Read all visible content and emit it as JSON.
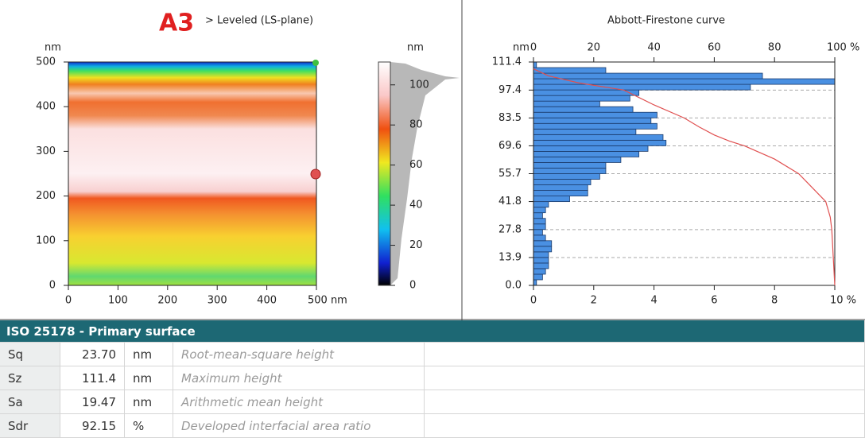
{
  "left_panel": {
    "label": "A3",
    "subtitle": "> Leveled (LS-plane)",
    "map": {
      "x_unit": "nm",
      "y_unit": "nm",
      "xlim": [
        0,
        500
      ],
      "xticks": [
        0,
        100,
        200,
        300,
        400,
        {
          "value": 500,
          "label": "500 nm"
        }
      ],
      "ylim": [
        0,
        500
      ],
      "yticks": [
        0,
        100,
        200,
        300,
        400,
        500
      ]
    },
    "colorbar": {
      "unit": "nm",
      "lim": [
        0,
        111.4
      ],
      "ticks": [
        0,
        20,
        40,
        60,
        80,
        100
      ]
    }
  },
  "chart_data": {
    "type": "histogram",
    "title": "Abbott-Firestone curve",
    "y_unit": "nm",
    "bins": [
      0,
      2.785,
      5.57,
      8.355,
      11.14,
      13.925,
      16.71,
      19.495,
      22.28,
      25.065,
      27.85,
      30.635,
      33.42,
      36.205,
      38.99,
      41.775,
      44.56,
      47.345,
      50.13,
      52.915,
      55.7,
      58.485,
      61.27,
      64.055,
      66.84,
      69.625,
      72.41,
      75.195,
      77.98,
      80.765,
      83.55,
      86.335,
      89.12,
      91.905,
      94.69,
      97.475,
      100.26,
      103.045,
      105.83,
      108.615,
      111.4
    ],
    "values": [
      0.1,
      0.3,
      0.4,
      0.5,
      0.5,
      0.5,
      0.6,
      0.6,
      0.4,
      0.3,
      0.4,
      0.4,
      0.3,
      0.4,
      0.5,
      1.2,
      1.8,
      1.8,
      1.9,
      2.2,
      2.4,
      2.4,
      2.9,
      3.5,
      3.8,
      4.4,
      4.3,
      3.4,
      4.1,
      3.9,
      4.1,
      3.3,
      2.2,
      3.2,
      3.5,
      7.2,
      10.0,
      7.6,
      2.4,
      0.1
    ],
    "color": "#4a90e2",
    "xlim": [
      0,
      10
    ],
    "xticks": [
      0,
      2,
      4,
      6,
      8,
      {
        "value": 10,
        "label": "10 %"
      }
    ],
    "ylim": [
      0,
      111.4
    ],
    "yticks": [
      {
        "value": 0,
        "label": "0.0"
      },
      13.9,
      27.8,
      41.8,
      55.7,
      69.6,
      83.5,
      97.4,
      111.4
    ],
    "grid": true,
    "curve": {
      "color": "#e05050",
      "x2lim": [
        0,
        100
      ],
      "x2ticks": [
        0,
        20,
        40,
        60,
        80,
        {
          "value": 100,
          "label": "100 %"
        }
      ],
      "x": [
        0,
        5,
        15,
        30,
        40,
        50,
        55,
        60,
        65,
        70,
        80,
        88,
        93,
        97,
        98.5,
        99,
        99.5,
        100
      ],
      "y": [
        108,
        104.5,
        101,
        97.4,
        90,
        83.5,
        79,
        75,
        72,
        69.6,
        63,
        55.7,
        48,
        41.8,
        34,
        27.8,
        13.9,
        0
      ]
    }
  },
  "table": {
    "title": "ISO 25178 - Primary surface",
    "rows": [
      [
        "Sq",
        "23.70",
        "nm",
        "Root-mean-square height"
      ],
      [
        "Sz",
        "111.4",
        "nm",
        "Maximum height"
      ],
      [
        "Sa",
        "19.47",
        "nm",
        "Arithmetic mean height"
      ],
      [
        "Sdr",
        "92.15",
        "%",
        "Developed interfacial area ratio"
      ]
    ]
  }
}
